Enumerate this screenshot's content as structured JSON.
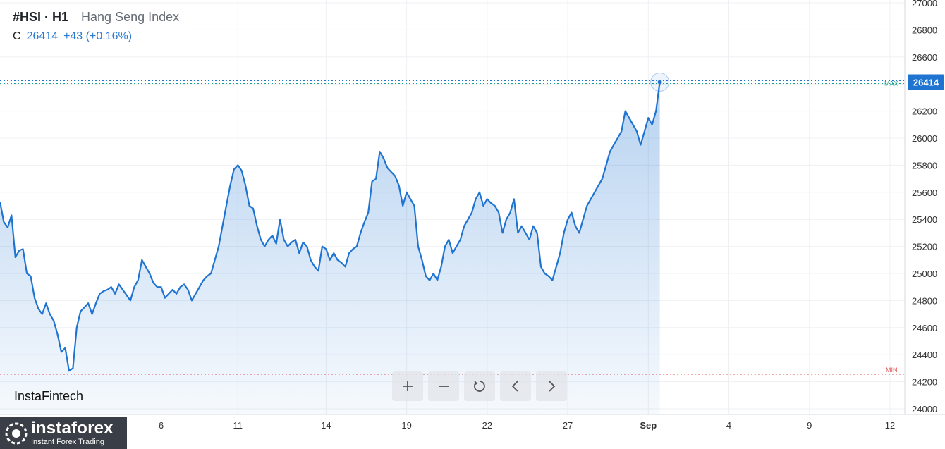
{
  "header": {
    "symbol": "#HSI · H1",
    "instrument": "Hang Seng Index",
    "close_label": "C",
    "close_value": "26414",
    "change": "+43 (+0.16%)"
  },
  "watermark": "InstaFintech",
  "toolbar": [
    {
      "name": "zoom-in-button",
      "icon": "plus-icon"
    },
    {
      "name": "zoom-out-button",
      "icon": "minus-icon"
    },
    {
      "name": "reset-button",
      "icon": "reset-icon"
    },
    {
      "name": "scroll-left-button",
      "icon": "chevron-left-icon"
    },
    {
      "name": "scroll-right-button",
      "icon": "chevron-right-icon"
    }
  ],
  "brand": {
    "name": "instaforex",
    "tagline": "Instant Forex Trading"
  },
  "colors": {
    "line": "#1f74d1",
    "max": "#14a38b",
    "min": "#e05757",
    "price_tag": "#1f74d1"
  },
  "chart_data": {
    "type": "area",
    "ylim": [
      24000,
      27000
    ],
    "y_ticks": [
      24000,
      24200,
      24400,
      24600,
      24800,
      25000,
      25200,
      25400,
      25600,
      25800,
      26000,
      26200,
      26400,
      26600,
      26800,
      27000
    ],
    "x_ticks": [
      {
        "label": "6",
        "x": 42
      },
      {
        "label": "11",
        "x": 62
      },
      {
        "label": "14",
        "x": 85
      },
      {
        "label": "19",
        "x": 106
      },
      {
        "label": "22",
        "x": 127
      },
      {
        "label": "27",
        "x": 148
      },
      {
        "label": "Sep",
        "x": 169
      },
      {
        "label": "4",
        "x": 190
      },
      {
        "label": "9",
        "x": 211
      },
      {
        "label": "12",
        "x": 232
      }
    ],
    "x_range": [
      0,
      232
    ],
    "last_price": 26414,
    "max_label": "MAX",
    "min_label": "MIN",
    "max_value": 26414,
    "min_value": 24255,
    "grid": true,
    "series": [
      {
        "values": [
          [
            0,
            25530
          ],
          [
            1,
            25380
          ],
          [
            2,
            25340
          ],
          [
            3,
            25430
          ],
          [
            4,
            25120
          ],
          [
            5,
            25170
          ],
          [
            6,
            25180
          ],
          [
            7,
            25000
          ],
          [
            8,
            24980
          ],
          [
            9,
            24820
          ],
          [
            10,
            24740
          ],
          [
            11,
            24700
          ],
          [
            12,
            24780
          ],
          [
            13,
            24700
          ],
          [
            14,
            24650
          ],
          [
            15,
            24550
          ],
          [
            16,
            24420
          ],
          [
            17,
            24450
          ],
          [
            18,
            24280
          ],
          [
            19,
            24300
          ],
          [
            20,
            24600
          ],
          [
            21,
            24720
          ],
          [
            22,
            24750
          ],
          [
            23,
            24780
          ],
          [
            24,
            24700
          ],
          [
            25,
            24780
          ],
          [
            26,
            24850
          ],
          [
            27,
            24870
          ],
          [
            28,
            24880
          ],
          [
            29,
            24900
          ],
          [
            30,
            24850
          ],
          [
            31,
            24920
          ],
          [
            32,
            24880
          ],
          [
            33,
            24840
          ],
          [
            34,
            24800
          ],
          [
            35,
            24900
          ],
          [
            36,
            24950
          ],
          [
            37,
            25100
          ],
          [
            38,
            25050
          ],
          [
            39,
            25000
          ],
          [
            40,
            24930
          ],
          [
            41,
            24900
          ],
          [
            42,
            24900
          ],
          [
            43,
            24820
          ],
          [
            44,
            24850
          ],
          [
            45,
            24880
          ],
          [
            46,
            24850
          ],
          [
            47,
            24900
          ],
          [
            48,
            24920
          ],
          [
            49,
            24880
          ],
          [
            50,
            24800
          ],
          [
            51,
            24850
          ],
          [
            52,
            24900
          ],
          [
            53,
            24950
          ],
          [
            54,
            24980
          ],
          [
            55,
            25000
          ],
          [
            56,
            25100
          ],
          [
            57,
            25200
          ],
          [
            58,
            25350
          ],
          [
            59,
            25500
          ],
          [
            60,
            25650
          ],
          [
            61,
            25770
          ],
          [
            62,
            25800
          ],
          [
            63,
            25760
          ],
          [
            64,
            25650
          ],
          [
            65,
            25500
          ],
          [
            66,
            25480
          ],
          [
            67,
            25350
          ],
          [
            68,
            25250
          ],
          [
            69,
            25200
          ],
          [
            70,
            25250
          ],
          [
            71,
            25280
          ],
          [
            72,
            25220
          ],
          [
            73,
            25400
          ],
          [
            74,
            25250
          ],
          [
            75,
            25200
          ],
          [
            76,
            25230
          ],
          [
            77,
            25250
          ],
          [
            78,
            25150
          ],
          [
            79,
            25230
          ],
          [
            80,
            25200
          ],
          [
            81,
            25100
          ],
          [
            82,
            25050
          ],
          [
            83,
            25020
          ],
          [
            84,
            25200
          ],
          [
            85,
            25180
          ],
          [
            86,
            25100
          ],
          [
            87,
            25150
          ],
          [
            88,
            25100
          ],
          [
            89,
            25080
          ],
          [
            90,
            25050
          ],
          [
            91,
            25150
          ],
          [
            92,
            25180
          ],
          [
            93,
            25200
          ],
          [
            94,
            25300
          ],
          [
            95,
            25380
          ],
          [
            96,
            25450
          ],
          [
            97,
            25680
          ],
          [
            98,
            25700
          ],
          [
            99,
            25900
          ],
          [
            100,
            25850
          ],
          [
            101,
            25780
          ],
          [
            102,
            25750
          ],
          [
            103,
            25720
          ],
          [
            104,
            25650
          ],
          [
            105,
            25500
          ],
          [
            106,
            25600
          ],
          [
            107,
            25550
          ],
          [
            108,
            25500
          ],
          [
            109,
            25200
          ],
          [
            110,
            25100
          ],
          [
            111,
            24980
          ],
          [
            112,
            24950
          ],
          [
            113,
            25000
          ],
          [
            114,
            24950
          ],
          [
            115,
            25050
          ],
          [
            116,
            25200
          ],
          [
            117,
            25250
          ],
          [
            118,
            25150
          ],
          [
            119,
            25200
          ],
          [
            120,
            25250
          ],
          [
            121,
            25350
          ],
          [
            122,
            25400
          ],
          [
            123,
            25450
          ],
          [
            124,
            25550
          ],
          [
            125,
            25600
          ],
          [
            126,
            25500
          ],
          [
            127,
            25550
          ],
          [
            128,
            25520
          ],
          [
            129,
            25500
          ],
          [
            130,
            25450
          ],
          [
            131,
            25300
          ],
          [
            132,
            25400
          ],
          [
            133,
            25450
          ],
          [
            134,
            25550
          ],
          [
            135,
            25300
          ],
          [
            136,
            25350
          ],
          [
            137,
            25300
          ],
          [
            138,
            25250
          ],
          [
            139,
            25350
          ],
          [
            140,
            25300
          ],
          [
            141,
            25050
          ],
          [
            142,
            25000
          ],
          [
            143,
            24980
          ],
          [
            144,
            24950
          ],
          [
            145,
            25050
          ],
          [
            146,
            25150
          ],
          [
            147,
            25300
          ],
          [
            148,
            25400
          ],
          [
            149,
            25450
          ],
          [
            150,
            25350
          ],
          [
            151,
            25300
          ],
          [
            152,
            25400
          ],
          [
            153,
            25500
          ],
          [
            154,
            25550
          ],
          [
            155,
            25600
          ],
          [
            156,
            25650
          ],
          [
            157,
            25700
          ],
          [
            158,
            25800
          ],
          [
            159,
            25900
          ],
          [
            160,
            25950
          ],
          [
            161,
            26000
          ],
          [
            162,
            26050
          ],
          [
            163,
            26200
          ],
          [
            164,
            26150
          ],
          [
            165,
            26100
          ],
          [
            166,
            26050
          ],
          [
            167,
            25950
          ],
          [
            168,
            26050
          ],
          [
            169,
            26150
          ],
          [
            170,
            26100
          ],
          [
            171,
            26200
          ],
          [
            172,
            26414
          ]
        ]
      }
    ]
  }
}
